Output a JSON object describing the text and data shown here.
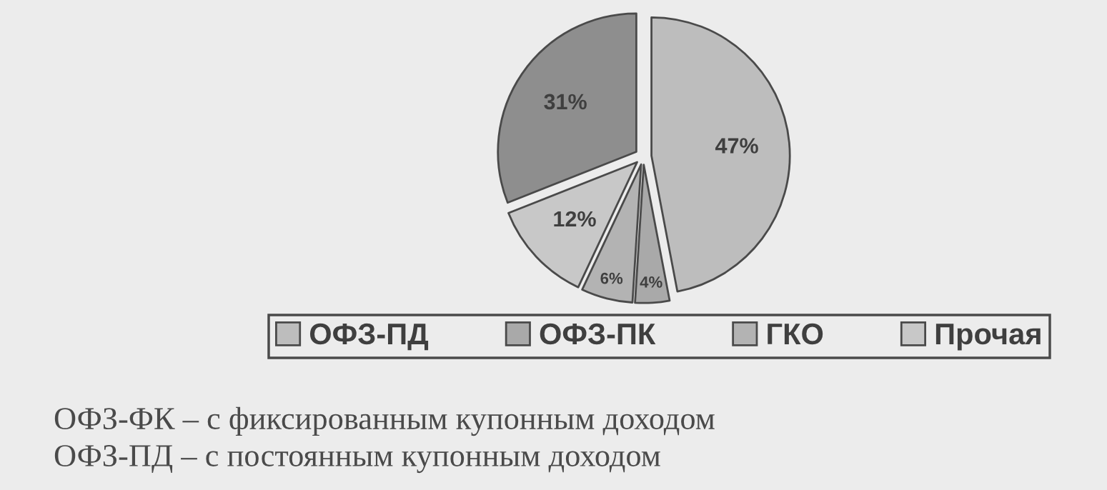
{
  "chart_data": {
    "type": "pie",
    "categories": [
      "ОФЗ-ПД",
      "ОФЗ-ПК",
      "ГКО",
      "Прочая",
      null
    ],
    "values": [
      47,
      4,
      6,
      12,
      31
    ],
    "colors": [
      "#bdbdbd",
      "#a9a9a9",
      "#b3b3b3",
      "#c8c8c8",
      "#8e8e8e"
    ],
    "value_labels": [
      "47%",
      "4%",
      "6%",
      "12%",
      "31%"
    ],
    "legend": "bottom",
    "annotations": [
      "ОФЗ-ФК – с фиксированным купонным доходом",
      "ОФЗ-ПД – с постоянным купонным доходом"
    ]
  }
}
